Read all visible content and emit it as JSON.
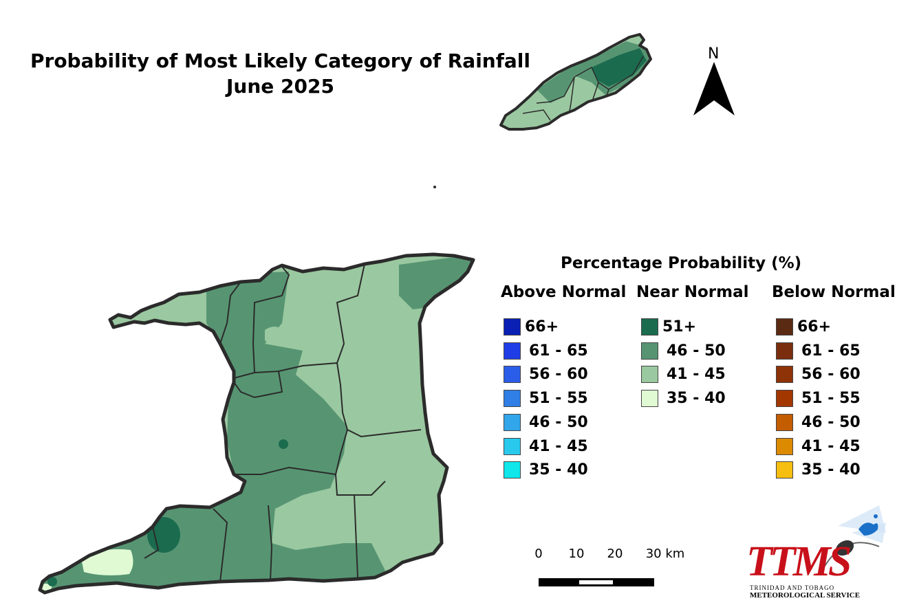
{
  "title": {
    "line1": "Probability of Most Likely Category of Rainfall",
    "line2": "June 2025"
  },
  "north_arrow": {
    "label": "N"
  },
  "legend": {
    "title": "Percentage Probability (%)",
    "columns": [
      {
        "heading": "Above Normal",
        "items": [
          {
            "label": "66+",
            "color": "#0a1fb4"
          },
          {
            "label": "61 - 65",
            "color": "#1f3de6"
          },
          {
            "label": "56 - 60",
            "color": "#2b5ee8"
          },
          {
            "label": "51 - 55",
            "color": "#2f7fe6"
          },
          {
            "label": "46 - 50",
            "color": "#31a6ea"
          },
          {
            "label": "41 - 45",
            "color": "#29c9ee"
          },
          {
            "label": "35 - 40",
            "color": "#0fe7ea"
          }
        ]
      },
      {
        "heading": "Near Normal",
        "items": [
          {
            "label": "51+",
            "color": "#1b6b4f"
          },
          {
            "label": "46 - 50",
            "color": "#579572"
          },
          {
            "label": "41 - 45",
            "color": "#9ac8a0"
          },
          {
            "label": "35 - 40",
            "color": "#e0fad4"
          }
        ]
      },
      {
        "heading": "Below Normal",
        "items": [
          {
            "label": "66+",
            "color": "#5b2a12"
          },
          {
            "label": "61 - 65",
            "color": "#7a2e0e"
          },
          {
            "label": "56 - 60",
            "color": "#8e3308"
          },
          {
            "label": "51 - 55",
            "color": "#a33700"
          },
          {
            "label": "46 - 50",
            "color": "#c45c00"
          },
          {
            "label": "41 - 45",
            "color": "#dc8a00"
          },
          {
            "label": "35 - 40",
            "color": "#f6be10"
          }
        ]
      }
    ]
  },
  "scale_bar": {
    "ticks": [
      "0",
      "10",
      "20",
      "30 km"
    ]
  },
  "logo": {
    "name": "TTMS",
    "subtitle1": "TRINIDAD AND TOBAGO",
    "subtitle2": "METEOROLOGICAL SERVICE"
  }
}
